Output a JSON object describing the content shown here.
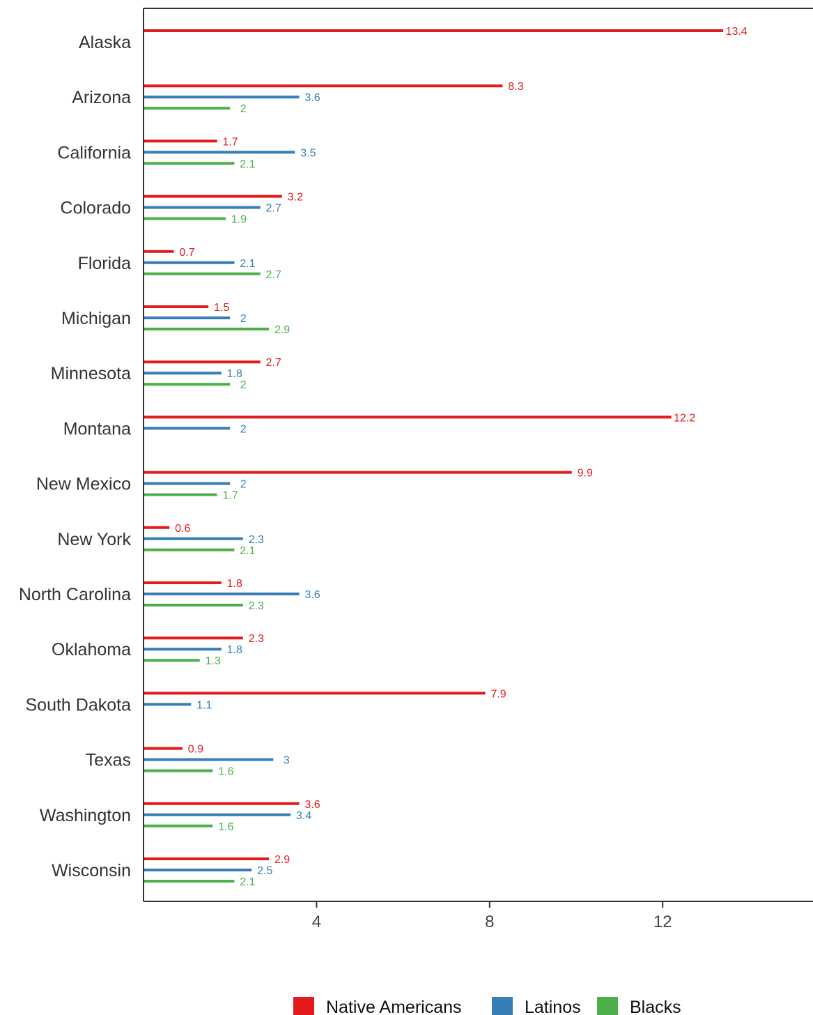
{
  "chart_data": {
    "type": "bar",
    "orientation": "horizontal",
    "title": "",
    "xlabel": "",
    "ylabel": "",
    "xlim": [
      0,
      15.5
    ],
    "xticks": [
      4,
      8,
      12
    ],
    "grid": false,
    "legend_position": "bottom-right",
    "categories": [
      "Alaska",
      "Arizona",
      "California",
      "Colorado",
      "Florida",
      "Michigan",
      "Minnesota",
      "Montana",
      "New Mexico",
      "New York",
      "North Carolina",
      "Oklahoma",
      "South Dakota",
      "Texas",
      "Washington",
      "Wisconsin"
    ],
    "series": [
      {
        "name": "Native Americans",
        "color": "#e41a1c",
        "values": [
          13.4,
          8.3,
          1.7,
          3.2,
          0.7,
          1.5,
          2.7,
          12.2,
          9.9,
          0.6,
          1.8,
          2.3,
          7.9,
          0.9,
          3.6,
          2.9
        ]
      },
      {
        "name": "Latinos",
        "color": "#377eb8",
        "values": [
          null,
          3.6,
          3.5,
          2.7,
          2.1,
          2,
          1.8,
          2,
          2,
          2.3,
          3.6,
          1.8,
          1.1,
          3,
          3.4,
          2.5
        ]
      },
      {
        "name": "Blacks",
        "color": "#4daf4a",
        "values": [
          null,
          2,
          2.1,
          1.9,
          2.7,
          2.9,
          2,
          null,
          1.7,
          2.1,
          2.3,
          1.3,
          null,
          1.6,
          1.6,
          2.1
        ]
      }
    ]
  }
}
